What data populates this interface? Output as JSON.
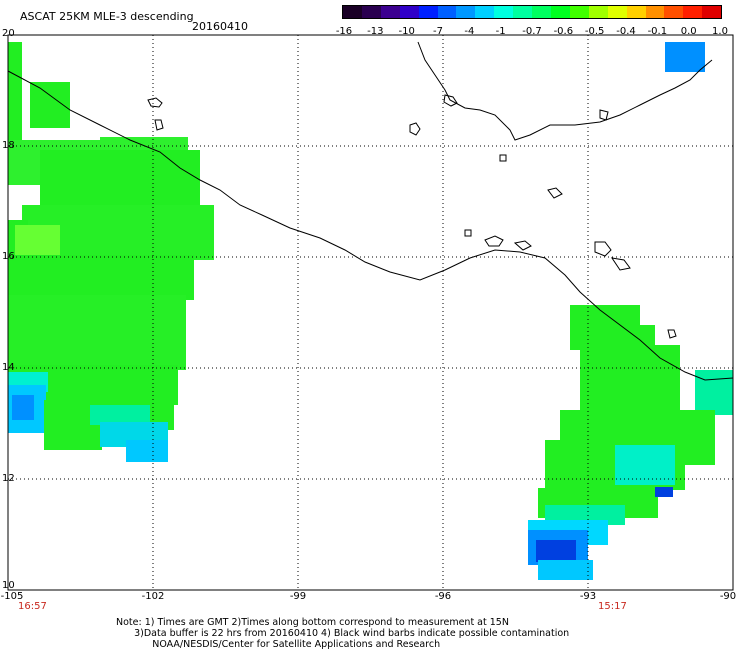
{
  "header": {
    "title": "ASCAT 25KM MLE-3 descending",
    "date": "20160410"
  },
  "colorbar": {
    "tick_labels": [
      "-16",
      "-13",
      "-10",
      "-7",
      "-4",
      "-1",
      "-0.7",
      "-0.6",
      "-0.5",
      "-0.4",
      "-0.1",
      "0.0",
      "1.0"
    ],
    "colors": [
      "#1a0026",
      "#2a0050",
      "#3c0090",
      "#3000c8",
      "#0020ff",
      "#0060ff",
      "#0098ff",
      "#00d0ff",
      "#00ffe0",
      "#00ffa0",
      "#00ff60",
      "#00ff20",
      "#40ff00",
      "#a0ff00",
      "#e0ff00",
      "#ffd000",
      "#ff9000",
      "#ff5000",
      "#ff2000",
      "#e00000"
    ]
  },
  "map": {
    "lat_labels": [
      "20",
      "18",
      "16",
      "14",
      "12",
      "10"
    ],
    "lon_labels": [
      "-105",
      "-102",
      "-99",
      "-96",
      "-93",
      "-90"
    ],
    "times": {
      "left": "16:57",
      "right": "15:17"
    },
    "colors": {
      "background": "#ffffff",
      "coastline": "#000000",
      "grid": "#000000",
      "mle_green": "#22ee22",
      "mle_light_green": "#66ff33",
      "mle_cyan": "#00f0d0",
      "mle_light_blue": "#00c8ff",
      "mle_blue": "#0090ff",
      "mle_dark_blue": "#0040e0"
    }
  },
  "footer": {
    "note_line1": "Note: 1) Times are GMT 2)Times along bottom correspond to measurement at 15N",
    "note_line2": "      3)Data buffer is 22 hrs from 20160410 4) Black wind barbs indicate possible contamination",
    "note_line3": "            NOAA/NESDIS/Center for Satellite Applications and Research"
  }
}
